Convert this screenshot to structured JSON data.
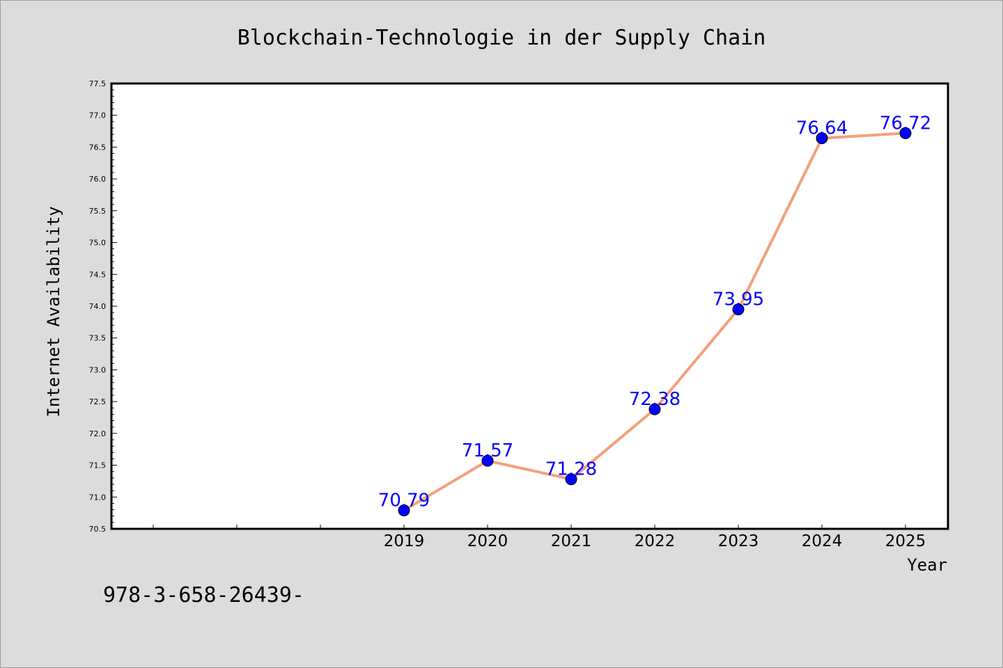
{
  "chart_data": {
    "type": "line",
    "title": "Blockchain-Technologie in der Supply Chain",
    "xlabel": "Year",
    "ylabel": "Internet Availability",
    "x": [
      "2019",
      "2020",
      "2021",
      "2022",
      "2023",
      "2024",
      "2025"
    ],
    "series": [
      {
        "values": [
          70.79,
          71.57,
          71.28,
          72.38,
          73.95,
          76.64,
          76.72
        ],
        "labels": [
          "70.79",
          "71.57",
          "71.28",
          "72.38",
          "73.95",
          "76.64",
          "76.72"
        ]
      }
    ],
    "ylim": [
      70.5,
      77.5
    ],
    "yticks": [
      "70.5",
      "71.0",
      "71.5",
      "72.0",
      "72.5",
      "73.0",
      "73.5",
      "74.0",
      "74.5",
      "75.0",
      "75.5",
      "76.0",
      "76.5",
      "77.0",
      "77.5"
    ],
    "grid": false,
    "legend": "none",
    "line_color": "#f4a07a",
    "marker_color": "#0000ff",
    "label_color": "#0000ff"
  },
  "footer": {
    "text": "978-3-658-26439-"
  }
}
